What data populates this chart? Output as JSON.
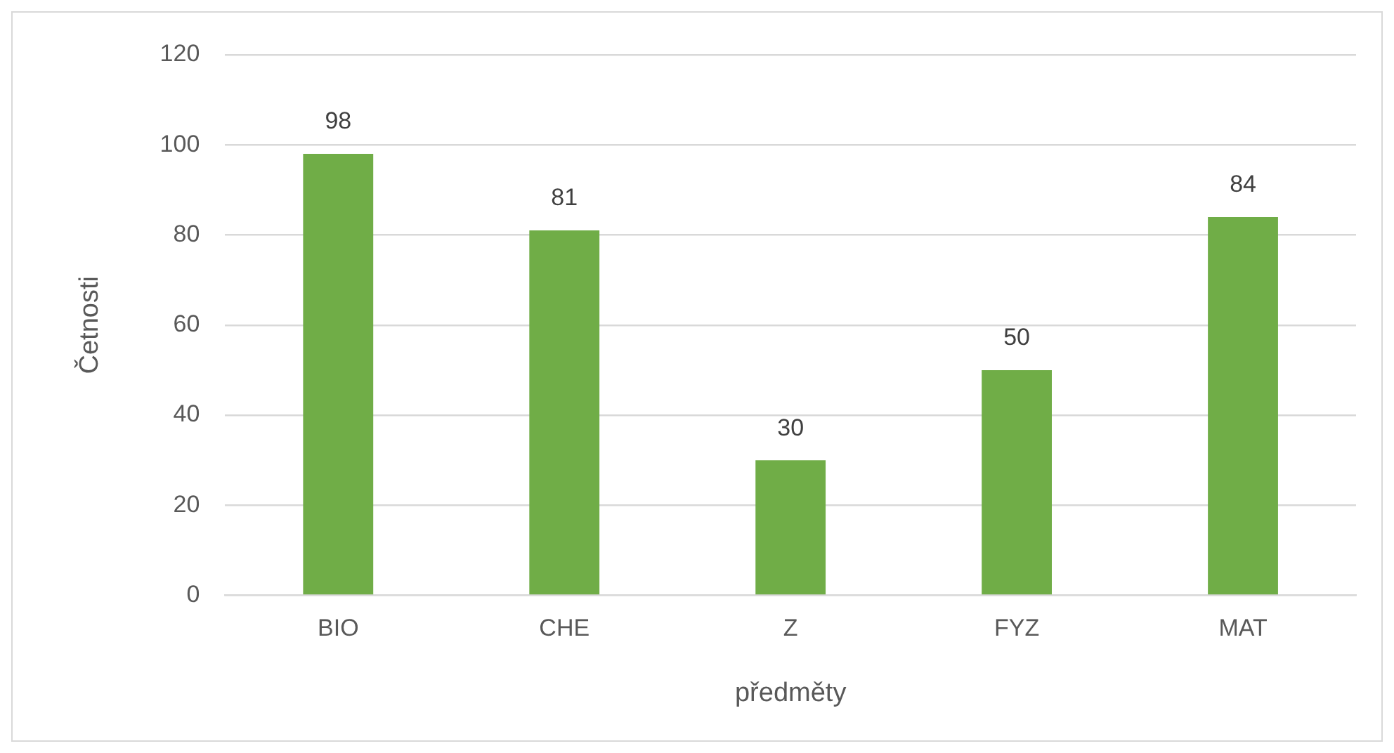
{
  "chart_data": {
    "type": "bar",
    "xlabel": "předměty",
    "ylabel": "Četnosti",
    "categories": [
      "BIO",
      "CHE",
      "Z",
      "FYZ",
      "MAT"
    ],
    "values": [
      98,
      81,
      30,
      50,
      84
    ],
    "color": "#70ad47",
    "ylim": [
      0,
      120
    ],
    "yticks": [
      0,
      20,
      40,
      60,
      80,
      100,
      120
    ],
    "grid": "y",
    "data_labels": true
  }
}
